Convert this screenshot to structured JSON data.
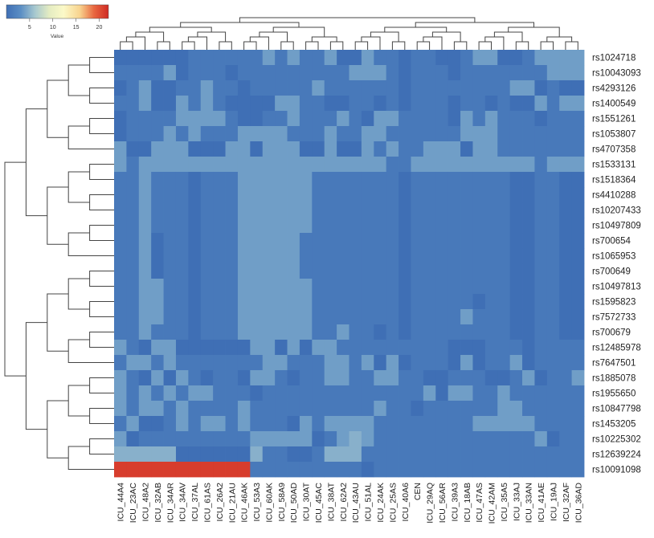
{
  "chart_data": {
    "type": "heatmap",
    "title": "",
    "xlabel": "",
    "ylabel": "",
    "colorbar": {
      "label": "Value",
      "ticks": [
        5,
        10,
        15,
        20
      ],
      "range": [
        0,
        22
      ],
      "colors": [
        "#3f6fb5",
        "#5b8ec4",
        "#a7c8cf",
        "#e4ecc2",
        "#fbf9c8",
        "#f8d38e",
        "#e8663f",
        "#cf2a24"
      ]
    },
    "columns": [
      "ICU_44A4",
      "ICU_23AC",
      "ICU_48A2",
      "ICU_32AB",
      "ICU_34AR",
      "ICU_34AV",
      "ICU_37AL",
      "ICU_61AS",
      "ICU_26A2",
      "ICU_21AU",
      "ICU_46AK",
      "ICU_53A3",
      "ICU_60AK",
      "ICU_58A9",
      "ICU_50AD",
      "ICU_30AT",
      "ICU_45AC",
      "ICU_38AT",
      "ICU_62A2",
      "ICU_43AU",
      "ICU_51AL",
      "ICU_24AK",
      "ICU_25AS",
      "ICU_40A6",
      "CEN",
      "ICU_29AQ",
      "ICU_56AR",
      "ICU_39A3",
      "ICU_18AB",
      "ICU_47AS",
      "ICU_42AM",
      "ICU_35A5",
      "ICU_33AJ",
      "ICU_33AN",
      "ICU_41AE",
      "ICU_19AJ",
      "ICU_32AF",
      "ICU_36AD"
    ],
    "rows": [
      "rs1024718",
      "rs10043093",
      "rs4293126",
      "rs1400549",
      "rs1551261",
      "rs1053807",
      "rs4707358",
      "rs1533131",
      "rs1518364",
      "rs4410288",
      "rs10207433",
      "rs10497809",
      "rs700654",
      "rs1065953",
      "rs700649",
      "rs10497813",
      "rs1595823",
      "rs7572733",
      "rs700679",
      "rs12485978",
      "rs7647501",
      "rs1885078",
      "rs1955650",
      "rs10847798",
      "rs1453205",
      "rs10225302",
      "rs12639224",
      "rs10091098"
    ],
    "values": [
      [
        0,
        0,
        0,
        0,
        0,
        0,
        1,
        1,
        1,
        1,
        1,
        1,
        4,
        1,
        4,
        1,
        1,
        4,
        0,
        0,
        4,
        1,
        1,
        0,
        1,
        1,
        0,
        0,
        1,
        4,
        4,
        0,
        0,
        1,
        4,
        4,
        4,
        4
      ],
      [
        1,
        1,
        1,
        1,
        4,
        0,
        1,
        1,
        1,
        0,
        1,
        1,
        1,
        1,
        1,
        1,
        1,
        1,
        1,
        4,
        4,
        4,
        1,
        0,
        1,
        1,
        1,
        0,
        1,
        1,
        1,
        1,
        1,
        1,
        1,
        4,
        4,
        4
      ],
      [
        0,
        1,
        4,
        0,
        0,
        1,
        1,
        4,
        1,
        1,
        0,
        1,
        1,
        1,
        1,
        1,
        4,
        1,
        1,
        1,
        1,
        1,
        1,
        0,
        1,
        1,
        1,
        1,
        1,
        1,
        1,
        1,
        4,
        4,
        0,
        1,
        0,
        0
      ],
      [
        1,
        1,
        4,
        0,
        0,
        4,
        1,
        4,
        1,
        0,
        0,
        0,
        0,
        4,
        4,
        1,
        1,
        0,
        0,
        1,
        1,
        0,
        1,
        0,
        1,
        1,
        1,
        0,
        1,
        1,
        0,
        1,
        0,
        0,
        4,
        1,
        4,
        4
      ],
      [
        0,
        1,
        1,
        1,
        1,
        4,
        4,
        4,
        4,
        1,
        0,
        0,
        1,
        1,
        4,
        1,
        1,
        1,
        4,
        1,
        0,
        4,
        4,
        1,
        1,
        1,
        1,
        0,
        4,
        1,
        4,
        1,
        1,
        1,
        0,
        1,
        1,
        1
      ],
      [
        0,
        1,
        1,
        1,
        4,
        1,
        4,
        1,
        1,
        1,
        4,
        4,
        4,
        4,
        1,
        1,
        1,
        4,
        1,
        1,
        4,
        4,
        1,
        1,
        1,
        1,
        1,
        1,
        4,
        4,
        4,
        1,
        1,
        1,
        1,
        1,
        1,
        1
      ],
      [
        4,
        0,
        0,
        4,
        4,
        4,
        0,
        0,
        0,
        4,
        4,
        0,
        4,
        4,
        4,
        0,
        0,
        4,
        0,
        0,
        4,
        1,
        4,
        1,
        1,
        4,
        4,
        4,
        0,
        4,
        4,
        1,
        1,
        1,
        1,
        1,
        1,
        1
      ],
      [
        4,
        1,
        4,
        4,
        4,
        4,
        4,
        4,
        4,
        4,
        4,
        4,
        4,
        4,
        4,
        4,
        4,
        4,
        4,
        4,
        4,
        4,
        1,
        1,
        4,
        4,
        4,
        4,
        4,
        4,
        4,
        4,
        4,
        4,
        1,
        4,
        4,
        4
      ],
      [
        1,
        1,
        4,
        1,
        1,
        1,
        0,
        1,
        1,
        1,
        4,
        4,
        4,
        4,
        4,
        4,
        1,
        1,
        1,
        1,
        1,
        1,
        1,
        0,
        1,
        1,
        1,
        1,
        1,
        1,
        1,
        1,
        0,
        0,
        1,
        1,
        0,
        0
      ],
      [
        1,
        1,
        4,
        1,
        1,
        1,
        0,
        1,
        1,
        1,
        4,
        4,
        4,
        4,
        4,
        4,
        1,
        1,
        1,
        1,
        1,
        1,
        1,
        0,
        1,
        1,
        1,
        1,
        1,
        1,
        1,
        1,
        0,
        0,
        1,
        1,
        0,
        0
      ],
      [
        1,
        1,
        4,
        1,
        1,
        1,
        0,
        1,
        1,
        1,
        4,
        4,
        4,
        4,
        4,
        4,
        1,
        1,
        1,
        1,
        1,
        1,
        1,
        0,
        1,
        1,
        1,
        1,
        1,
        1,
        1,
        1,
        0,
        0,
        1,
        1,
        0,
        0
      ],
      [
        1,
        1,
        4,
        1,
        1,
        1,
        0,
        1,
        1,
        1,
        4,
        4,
        4,
        4,
        4,
        4,
        1,
        1,
        1,
        1,
        1,
        1,
        1,
        0,
        1,
        1,
        1,
        1,
        1,
        1,
        1,
        1,
        0,
        0,
        1,
        1,
        0,
        0
      ],
      [
        1,
        1,
        4,
        0,
        1,
        1,
        0,
        1,
        1,
        1,
        4,
        4,
        4,
        4,
        4,
        1,
        1,
        1,
        1,
        1,
        1,
        1,
        1,
        0,
        1,
        1,
        1,
        1,
        1,
        1,
        1,
        1,
        0,
        0,
        1,
        1,
        0,
        0
      ],
      [
        1,
        1,
        4,
        0,
        1,
        1,
        0,
        1,
        1,
        1,
        4,
        4,
        4,
        4,
        4,
        1,
        1,
        1,
        1,
        1,
        1,
        1,
        1,
        0,
        1,
        1,
        1,
        1,
        1,
        1,
        1,
        1,
        0,
        0,
        1,
        1,
        0,
        0
      ],
      [
        1,
        1,
        4,
        0,
        1,
        1,
        0,
        1,
        1,
        1,
        4,
        4,
        4,
        4,
        4,
        1,
        1,
        1,
        1,
        1,
        1,
        1,
        1,
        0,
        1,
        1,
        1,
        1,
        1,
        1,
        1,
        1,
        0,
        0,
        1,
        1,
        0,
        0
      ],
      [
        1,
        1,
        4,
        4,
        1,
        1,
        0,
        1,
        1,
        1,
        4,
        4,
        4,
        4,
        4,
        4,
        1,
        1,
        1,
        1,
        1,
        1,
        1,
        0,
        1,
        1,
        1,
        1,
        1,
        1,
        1,
        1,
        0,
        0,
        1,
        1,
        0,
        0
      ],
      [
        1,
        1,
        4,
        4,
        1,
        1,
        0,
        1,
        1,
        1,
        4,
        4,
        4,
        4,
        4,
        4,
        1,
        1,
        1,
        1,
        1,
        1,
        1,
        0,
        1,
        1,
        1,
        1,
        1,
        0,
        1,
        1,
        0,
        0,
        1,
        1,
        0,
        0
      ],
      [
        1,
        1,
        4,
        4,
        1,
        1,
        0,
        1,
        1,
        1,
        4,
        4,
        4,
        4,
        4,
        4,
        1,
        1,
        1,
        1,
        1,
        1,
        1,
        0,
        1,
        1,
        1,
        1,
        4,
        1,
        1,
        1,
        0,
        0,
        1,
        1,
        0,
        0
      ],
      [
        1,
        1,
        4,
        1,
        1,
        1,
        0,
        1,
        1,
        1,
        4,
        4,
        4,
        4,
        4,
        4,
        1,
        1,
        4,
        1,
        1,
        0,
        1,
        0,
        1,
        1,
        1,
        1,
        1,
        1,
        1,
        1,
        0,
        0,
        1,
        1,
        0,
        0
      ],
      [
        4,
        1,
        0,
        4,
        4,
        0,
        0,
        0,
        0,
        0,
        0,
        4,
        4,
        0,
        4,
        0,
        4,
        4,
        1,
        1,
        1,
        1,
        1,
        1,
        1,
        1,
        1,
        0,
        0,
        0,
        1,
        1,
        1,
        0,
        1,
        1,
        1,
        1
      ],
      [
        1,
        4,
        4,
        1,
        4,
        1,
        1,
        1,
        1,
        1,
        1,
        1,
        4,
        4,
        1,
        1,
        1,
        4,
        4,
        1,
        4,
        0,
        4,
        0,
        1,
        1,
        1,
        0,
        4,
        0,
        1,
        1,
        4,
        0,
        1,
        1,
        1,
        1
      ],
      [
        4,
        1,
        0,
        4,
        0,
        4,
        1,
        0,
        1,
        1,
        0,
        4,
        4,
        1,
        0,
        1,
        1,
        4,
        4,
        1,
        1,
        4,
        4,
        1,
        1,
        0,
        0,
        1,
        1,
        1,
        0,
        0,
        1,
        4,
        0,
        1,
        1,
        4
      ],
      [
        4,
        1,
        4,
        1,
        4,
        1,
        4,
        4,
        1,
        1,
        1,
        0,
        1,
        1,
        1,
        1,
        1,
        1,
        1,
        1,
        1,
        1,
        1,
        1,
        1,
        4,
        0,
        4,
        4,
        1,
        1,
        4,
        1,
        1,
        1,
        1,
        1,
        1
      ],
      [
        4,
        1,
        4,
        4,
        1,
        4,
        1,
        1,
        1,
        1,
        4,
        1,
        1,
        1,
        1,
        1,
        1,
        1,
        1,
        1,
        1,
        4,
        1,
        1,
        0,
        1,
        1,
        1,
        1,
        1,
        1,
        4,
        4,
        1,
        1,
        1,
        1,
        1
      ],
      [
        1,
        4,
        0,
        0,
        1,
        4,
        1,
        4,
        4,
        1,
        4,
        1,
        1,
        1,
        0,
        4,
        1,
        4,
        4,
        4,
        4,
        1,
        1,
        1,
        1,
        1,
        1,
        1,
        1,
        4,
        4,
        4,
        4,
        4,
        1,
        1,
        1,
        1
      ],
      [
        4,
        0,
        1,
        1,
        1,
        1,
        1,
        1,
        1,
        1,
        1,
        4,
        4,
        4,
        4,
        4,
        0,
        1,
        4,
        5,
        4,
        1,
        1,
        1,
        1,
        1,
        1,
        1,
        1,
        1,
        1,
        1,
        1,
        1,
        4,
        0,
        1,
        1
      ],
      [
        5,
        5,
        5,
        5,
        5,
        0,
        0,
        0,
        0,
        0,
        0,
        5,
        1,
        1,
        0,
        0,
        1,
        5,
        5,
        5,
        1,
        1,
        1,
        1,
        1,
        1,
        1,
        1,
        1,
        1,
        1,
        1,
        1,
        1,
        1,
        1,
        1,
        1
      ],
      [
        21,
        21,
        21,
        21,
        21,
        21,
        21,
        21,
        21,
        21,
        21,
        1,
        1,
        1,
        1,
        1,
        1,
        1,
        1,
        1,
        0,
        1,
        1,
        1,
        1,
        1,
        1,
        1,
        1,
        1,
        1,
        1,
        1,
        1,
        1,
        1,
        1,
        1
      ]
    ]
  }
}
